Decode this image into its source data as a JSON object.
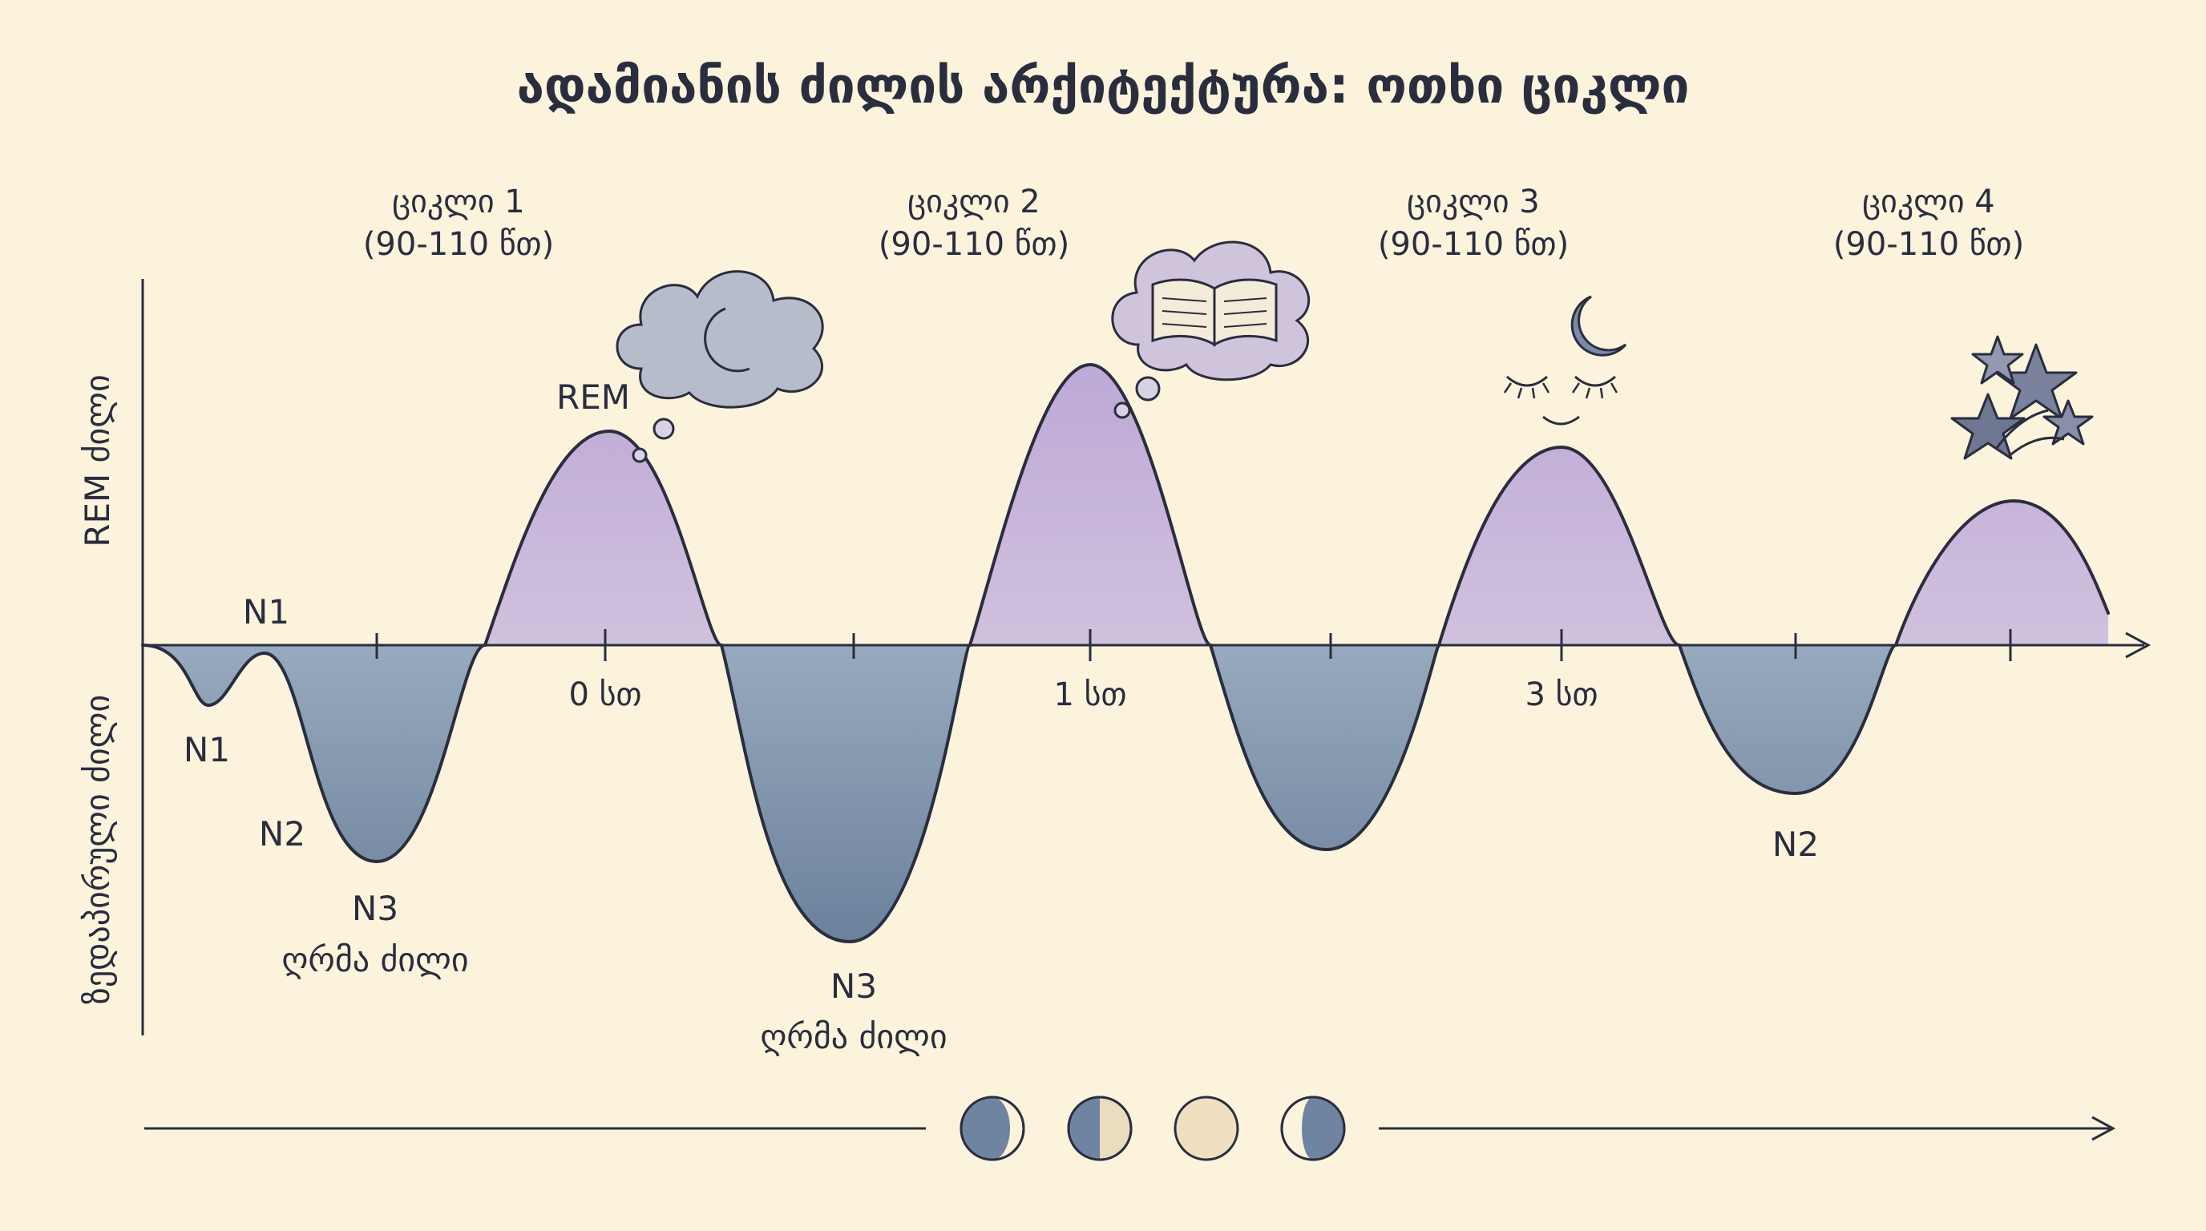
{
  "title": "ადამიანის ძილის არქიტექტურა: ოთხი ციკლი",
  "axes": {
    "y_upper": "REM ძილი",
    "y_lower": "ზედაპირული ძილი"
  },
  "cycles": [
    {
      "name": "ციკლი 1",
      "duration": "(90-110 წთ)"
    },
    {
      "name": "ციკლი 2",
      "duration": "(90-110 წთ)"
    },
    {
      "name": "ციკლი 3",
      "duration": "(90-110 წთ)"
    },
    {
      "name": "ციკლი 4",
      "duration": "(90-110 წთ)"
    }
  ],
  "time_ticks": [
    "0 სთ",
    "1 სთ",
    "3 სთ"
  ],
  "stage_labels": {
    "rem": "REM",
    "n1_top": "N1",
    "n1_bottom": "N1",
    "n2_first": "N2",
    "n3_first": "N3",
    "deep_first": "ღრმა ძილი",
    "n3_second": "N3",
    "deep_second": "ღრმა ძილი",
    "n2_last": "N2"
  },
  "icons": [
    "cloud-moon-icon",
    "cloud-book-icon",
    "moon-sleeping-face-icon",
    "stars-icon"
  ],
  "moon_phases": [
    "waning-crescent-icon",
    "half-moon-icon",
    "full-moon-icon",
    "waxing-crescent-icon"
  ],
  "colors": {
    "background": "#fbf3dc",
    "rem_fill": "#c9b8dc",
    "deep_fill": "#7d92ab",
    "ink": "#2a2d3e"
  }
}
